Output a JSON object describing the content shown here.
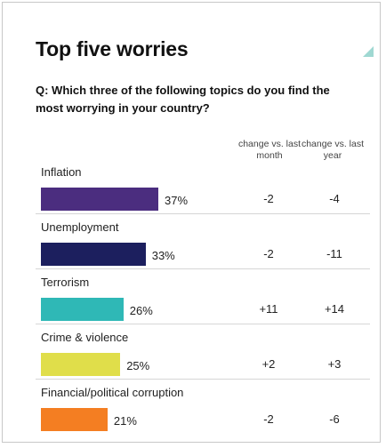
{
  "title": "Top five worries",
  "question": "Q: Which three of the following topics do you find the most worrying in your country?",
  "columns": {
    "change_month": "change vs. last month",
    "change_year": "change vs. last year"
  },
  "colors": {
    "inflation": "#4b2d7f",
    "unemployment": "#1c1f5e",
    "terrorism": "#2fb8b6",
    "crime": "#e0de4a",
    "corruption": "#f47e22",
    "corner_accent": "#9fd8d2"
  },
  "chart_data": {
    "type": "bar",
    "orientation": "horizontal",
    "categories": [
      "Inflation",
      "Unemployment",
      "Terrorism",
      "Crime & violence",
      "Financial/political corruption"
    ],
    "values": [
      37,
      33,
      26,
      25,
      21
    ],
    "value_labels": [
      "37%",
      "33%",
      "26%",
      "25%",
      "21%"
    ],
    "change_vs_last_month": [
      "-2",
      "-2",
      "+11",
      "+2",
      "-2"
    ],
    "change_vs_last_year": [
      "-4",
      "-11",
      "+14",
      "+3",
      "-6"
    ],
    "colors": [
      "#4b2d7f",
      "#1c1f5e",
      "#2fb8b6",
      "#e0de4a",
      "#f47e22"
    ],
    "grid": false
  }
}
